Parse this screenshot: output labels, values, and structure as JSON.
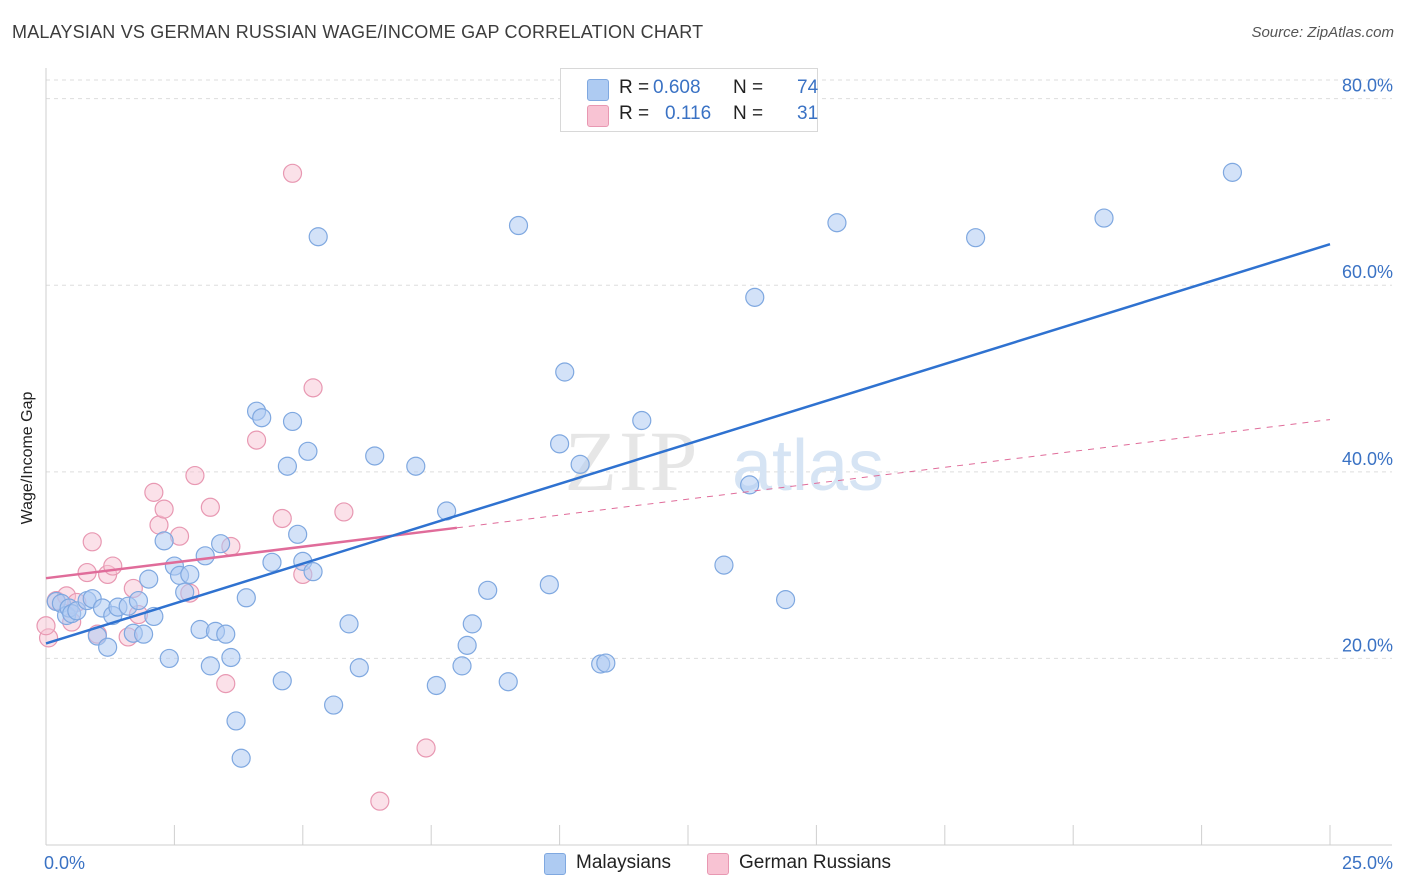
{
  "header": {
    "title": "MALAYSIAN VS GERMAN RUSSIAN WAGE/INCOME GAP CORRELATION CHART",
    "source": "Source: ZipAtlas.com"
  },
  "legend": {
    "rows": [
      {
        "r_label": "R =",
        "r_value": "0.608",
        "n_label": "N =",
        "n_value": "74"
      },
      {
        "r_label": "R =",
        "r_value": "0.116",
        "n_label": "N =",
        "n_value": "31"
      }
    ]
  },
  "watermark": {
    "zip": "ZIP",
    "atlas": "atlas"
  },
  "colors": {
    "malaysians_fill": "#aecbf2",
    "malaysians_stroke": "#7fa8e0",
    "malaysians_line": "#2f72d0",
    "german_fill": "#f8c3d3",
    "german_stroke": "#e898b2",
    "german_line": "#e06c9a",
    "tick_label": "#3a72c4",
    "grid": "#dddddd"
  },
  "chart_data": {
    "type": "scatter",
    "title": "MALAYSIAN VS GERMAN RUSSIAN WAGE/INCOME GAP CORRELATION CHART",
    "xlabel": "",
    "ylabel": "Wage/Income Gap",
    "xlim": [
      0,
      25
    ],
    "ylim": [
      0,
      82
    ],
    "x_tick_labels": [
      "0.0%",
      "25.0%"
    ],
    "y_ticks": [
      20,
      40,
      60,
      80
    ],
    "y_tick_labels": [
      "20.0%",
      "40.0%",
      "60.0%",
      "80.0%"
    ],
    "grid": true,
    "legend_position": "bottom",
    "series": [
      {
        "name": "Malaysians",
        "r": 0.608,
        "n": 74,
        "trend": {
          "x": [
            0,
            25
          ],
          "y": [
            21.6,
            64.4
          ],
          "style": "solid"
        },
        "points": [
          [
            0.2,
            26.1
          ],
          [
            0.3,
            25.9
          ],
          [
            0.4,
            24.6
          ],
          [
            0.45,
            25.4
          ],
          [
            0.5,
            24.8
          ],
          [
            0.6,
            25.1
          ],
          [
            0.8,
            26.2
          ],
          [
            0.9,
            26.4
          ],
          [
            1.0,
            22.4
          ],
          [
            1.1,
            25.4
          ],
          [
            1.2,
            21.2
          ],
          [
            1.3,
            24.6
          ],
          [
            1.4,
            25.5
          ],
          [
            1.6,
            25.6
          ],
          [
            1.7,
            22.7
          ],
          [
            1.8,
            26.2
          ],
          [
            1.9,
            22.6
          ],
          [
            2.0,
            28.5
          ],
          [
            2.1,
            24.5
          ],
          [
            2.3,
            32.6
          ],
          [
            2.4,
            20.0
          ],
          [
            2.5,
            29.9
          ],
          [
            2.6,
            28.9
          ],
          [
            2.7,
            27.1
          ],
          [
            2.8,
            29.0
          ],
          [
            3.0,
            23.1
          ],
          [
            3.1,
            31.0
          ],
          [
            3.2,
            19.2
          ],
          [
            3.3,
            22.9
          ],
          [
            3.5,
            22.6
          ],
          [
            3.4,
            32.3
          ],
          [
            3.6,
            20.1
          ],
          [
            3.7,
            13.3
          ],
          [
            3.8,
            9.3
          ],
          [
            3.9,
            26.5
          ],
          [
            4.1,
            46.5
          ],
          [
            4.2,
            45.8
          ],
          [
            4.4,
            30.3
          ],
          [
            4.6,
            17.6
          ],
          [
            4.7,
            40.6
          ],
          [
            4.8,
            45.4
          ],
          [
            4.9,
            33.3
          ],
          [
            5.0,
            30.4
          ],
          [
            5.1,
            42.2
          ],
          [
            5.2,
            29.3
          ],
          [
            5.3,
            65.2
          ],
          [
            5.6,
            15.0
          ],
          [
            5.9,
            23.7
          ],
          [
            6.1,
            19.0
          ],
          [
            6.4,
            41.7
          ],
          [
            7.2,
            40.6
          ],
          [
            7.6,
            17.1
          ],
          [
            7.8,
            35.8
          ],
          [
            8.1,
            19.2
          ],
          [
            8.2,
            21.4
          ],
          [
            8.3,
            23.7
          ],
          [
            8.6,
            27.3
          ],
          [
            9.0,
            17.5
          ],
          [
            9.2,
            66.4
          ],
          [
            9.8,
            27.9
          ],
          [
            10.0,
            43.0
          ],
          [
            10.1,
            50.7
          ],
          [
            10.4,
            40.8
          ],
          [
            10.8,
            19.4
          ],
          [
            10.9,
            19.5
          ],
          [
            11.6,
            45.5
          ],
          [
            13.2,
            30.0
          ],
          [
            13.7,
            38.6
          ],
          [
            13.8,
            58.7
          ],
          [
            14.4,
            26.3
          ],
          [
            15.4,
            66.7
          ],
          [
            18.1,
            65.1
          ],
          [
            20.6,
            67.2
          ],
          [
            23.1,
            72.1
          ]
        ]
      },
      {
        "name": "German Russians",
        "r": 0.116,
        "n": 31,
        "trend_solid": {
          "x": [
            0,
            8.0
          ],
          "y": [
            28.6,
            34.0
          ],
          "style": "solid"
        },
        "trend_dashed": {
          "x": [
            8.0,
            25
          ],
          "y": [
            34.0,
            45.6
          ],
          "style": "dashed"
        },
        "points": [
          [
            0.05,
            22.2
          ],
          [
            0.2,
            26.2
          ],
          [
            0.4,
            26.7
          ],
          [
            0.5,
            23.9
          ],
          [
            0.6,
            26.0
          ],
          [
            0.8,
            29.2
          ],
          [
            0.9,
            32.5
          ],
          [
            1.0,
            22.6
          ],
          [
            1.2,
            29.0
          ],
          [
            1.3,
            29.9
          ],
          [
            1.6,
            22.3
          ],
          [
            1.7,
            27.5
          ],
          [
            1.8,
            24.7
          ],
          [
            2.1,
            37.8
          ],
          [
            2.2,
            34.3
          ],
          [
            2.3,
            36.0
          ],
          [
            2.6,
            33.1
          ],
          [
            2.8,
            27.0
          ],
          [
            2.9,
            39.6
          ],
          [
            3.2,
            36.2
          ],
          [
            3.5,
            17.3
          ],
          [
            3.6,
            32.0
          ],
          [
            4.1,
            43.4
          ],
          [
            4.6,
            35.0
          ],
          [
            4.8,
            72.0
          ],
          [
            5.0,
            29.0
          ],
          [
            5.2,
            49.0
          ],
          [
            5.8,
            35.7
          ],
          [
            6.5,
            4.7
          ],
          [
            7.4,
            10.4
          ],
          [
            0.0,
            23.5
          ]
        ]
      }
    ]
  },
  "bottom_legend": [
    {
      "label": "Malaysians"
    },
    {
      "label": "German Russians"
    }
  ]
}
